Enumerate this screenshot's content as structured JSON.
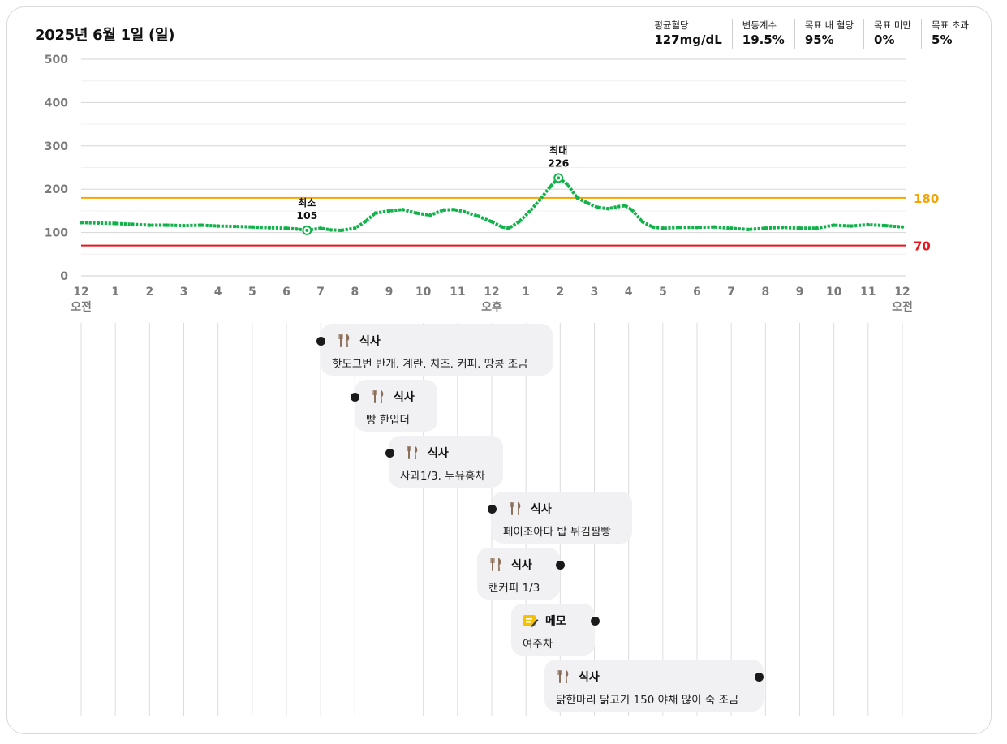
{
  "header": {
    "date": "2025년 6월 1일 (일)",
    "stats": [
      {
        "label": "평균혈당",
        "value": "127mg/dL"
      },
      {
        "label": "변동계수",
        "value": "19.5%"
      },
      {
        "label": "목표 내 혈당",
        "value": "95%"
      },
      {
        "label": "목표 미만",
        "value": "0%"
      },
      {
        "label": "목표 초과",
        "value": "5%"
      }
    ]
  },
  "chart_data": {
    "type": "line",
    "title": "",
    "xlabel": "",
    "ylabel": "",
    "ylim": [
      0,
      500
    ],
    "xlim": [
      0,
      24
    ],
    "yticks": [
      0,
      100,
      200,
      300,
      400,
      500
    ],
    "xtick_labels": [
      "12",
      "1",
      "2",
      "3",
      "4",
      "5",
      "6",
      "7",
      "8",
      "9",
      "10",
      "11",
      "12",
      "1",
      "2",
      "3",
      "4",
      "5",
      "6",
      "7",
      "8",
      "9",
      "10",
      "11",
      "12"
    ],
    "ampm_labels": [
      {
        "x": 0,
        "text": "오전"
      },
      {
        "x": 12,
        "text": "오후"
      },
      {
        "x": 24,
        "text": "오전"
      }
    ],
    "grid": true,
    "thresholds": [
      {
        "value": 180,
        "label": "180",
        "color": "#f5a400"
      },
      {
        "value": 70,
        "label": "70",
        "color": "#e8141c"
      }
    ],
    "series_color": "#12b24a",
    "points": [
      [
        0,
        123
      ],
      [
        0.5,
        122
      ],
      [
        1,
        121
      ],
      [
        1.5,
        119
      ],
      [
        2,
        117
      ],
      [
        2.5,
        117
      ],
      [
        3,
        116
      ],
      [
        3.5,
        117
      ],
      [
        4,
        115
      ],
      [
        4.5,
        114
      ],
      [
        5,
        113
      ],
      [
        5.5,
        111
      ],
      [
        6,
        110
      ],
      [
        6.3,
        108
      ],
      [
        6.6,
        105
      ],
      [
        7,
        110
      ],
      [
        7.3,
        106
      ],
      [
        7.6,
        105
      ],
      [
        8,
        110
      ],
      [
        8.3,
        125
      ],
      [
        8.6,
        145
      ],
      [
        9,
        150
      ],
      [
        9.4,
        153
      ],
      [
        9.8,
        145
      ],
      [
        10.2,
        140
      ],
      [
        10.6,
        152
      ],
      [
        10.9,
        153
      ],
      [
        11.2,
        148
      ],
      [
        11.6,
        138
      ],
      [
        12,
        125
      ],
      [
        12.3,
        113
      ],
      [
        12.5,
        110
      ],
      [
        12.8,
        125
      ],
      [
        13.1,
        148
      ],
      [
        13.4,
        175
      ],
      [
        13.7,
        205
      ],
      [
        13.95,
        226
      ],
      [
        14.2,
        212
      ],
      [
        14.5,
        180
      ],
      [
        14.8,
        168
      ],
      [
        15.1,
        158
      ],
      [
        15.4,
        155
      ],
      [
        15.7,
        160
      ],
      [
        15.9,
        162
      ],
      [
        16.1,
        152
      ],
      [
        16.4,
        125
      ],
      [
        16.7,
        113
      ],
      [
        17,
        110
      ],
      [
        17.5,
        112
      ],
      [
        18,
        112
      ],
      [
        18.5,
        113
      ],
      [
        19,
        110
      ],
      [
        19.5,
        107
      ],
      [
        20,
        110
      ],
      [
        20.5,
        112
      ],
      [
        21,
        110
      ],
      [
        21.5,
        110
      ],
      [
        22,
        117
      ],
      [
        22.5,
        115
      ],
      [
        23,
        118
      ],
      [
        23.5,
        116
      ],
      [
        24,
        113
      ]
    ],
    "annotations": [
      {
        "label": "최소",
        "value": 105,
        "x": 6.6
      },
      {
        "label": "최대",
        "value": 226,
        "x": 13.95
      }
    ]
  },
  "events": [
    {
      "time": 7.0,
      "type": "식사",
      "icon": "utensils-icon",
      "desc": "핫도그번 반개. 계란. 치즈. 커피. 땅콩 조금"
    },
    {
      "time": 8.0,
      "type": "식사",
      "icon": "utensils-icon",
      "desc": "빵 한입더"
    },
    {
      "time": 9.0,
      "type": "식사",
      "icon": "utensils-icon",
      "desc": "사과1/3. 두유홍차"
    },
    {
      "time": 12.0,
      "type": "식사",
      "icon": "utensils-icon",
      "desc": "페이조아다 밥 튀김짬빵"
    },
    {
      "time": 14.0,
      "type": "식사",
      "icon": "utensils-icon",
      "desc": "캔커피 1/3"
    },
    {
      "time": 15.0,
      "type": "메모",
      "icon": "memo-icon",
      "desc": "여주차"
    },
    {
      "time": 19.8,
      "type": "식사",
      "icon": "utensils-icon",
      "desc": "닭한마리 닭고기 150 야채 많이 죽 조금"
    }
  ]
}
